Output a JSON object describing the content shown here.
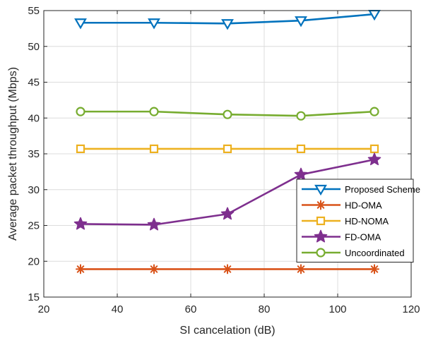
{
  "chart_data": {
    "type": "line",
    "xlabel": "SI cancelation (dB)",
    "ylabel": "Average packet throughput (Mbps)",
    "xlim": [
      20,
      120
    ],
    "ylim": [
      15,
      55
    ],
    "xticks": [
      20,
      40,
      60,
      80,
      100,
      120
    ],
    "yticks": [
      15,
      20,
      25,
      30,
      35,
      40,
      45,
      50,
      55
    ],
    "grid": true,
    "legend_position": "right",
    "x": [
      30,
      50,
      70,
      90,
      110
    ],
    "series": [
      {
        "name": "Proposed Scheme",
        "values": [
          53.3,
          53.3,
          53.2,
          53.6,
          54.5
        ],
        "color": "#0072BD",
        "marker": "triangle-down"
      },
      {
        "name": "HD-OMA",
        "values": [
          18.9,
          18.9,
          18.9,
          18.9,
          18.9
        ],
        "color": "#D95319",
        "marker": "asterisk"
      },
      {
        "name": "HD-NOMA",
        "values": [
          35.7,
          35.7,
          35.7,
          35.7,
          35.7
        ],
        "color": "#EDB120",
        "marker": "square"
      },
      {
        "name": "FD-OMA",
        "values": [
          25.2,
          25.1,
          26.6,
          32.1,
          34.2
        ],
        "color": "#7E2F8E",
        "marker": "star"
      },
      {
        "name": "Uncoordinated",
        "values": [
          40.9,
          40.9,
          40.5,
          40.3,
          40.9
        ],
        "color": "#77AC30",
        "marker": "circle"
      }
    ]
  }
}
